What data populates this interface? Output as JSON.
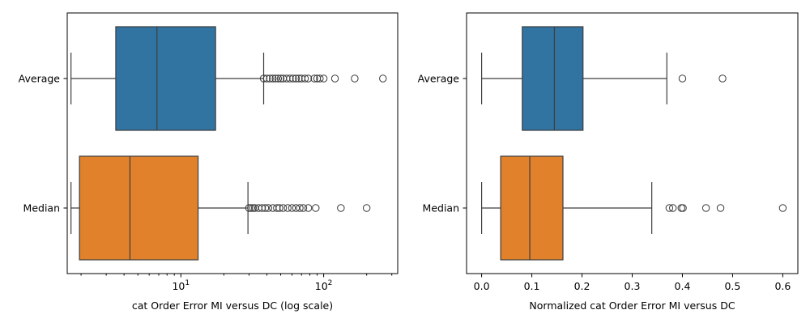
{
  "chart_data": [
    {
      "type": "boxplot",
      "orientation": "horizontal",
      "xscale": "log",
      "xlim": [
        1.6,
        330
      ],
      "xlabel": "cat Order Error MI versus DC (log scale)",
      "xtick_labels": [
        "10^1",
        "10^2"
      ],
      "categories": [
        "Average",
        "Median"
      ],
      "colors": [
        "#3274a1",
        "#e1812c"
      ],
      "series": [
        {
          "name": "Average",
          "whisker_low": 1.7,
          "q1": 3.5,
          "median": 6.8,
          "q3": 17.5,
          "whisker_high": 38,
          "outliers": [
            38,
            40,
            42,
            44,
            46,
            48,
            50,
            52,
            55,
            58,
            61,
            64,
            67,
            70,
            74,
            78,
            86,
            90,
            94,
            100,
            120,
            165,
            260
          ]
        },
        {
          "name": "Median",
          "whisker_low": 1.7,
          "q1": 1.95,
          "median": 4.4,
          "q3": 13.2,
          "whisker_high": 29.5,
          "outliers": [
            30,
            31,
            32,
            33,
            35,
            37,
            39,
            41,
            44,
            47,
            49,
            52,
            56,
            60,
            64,
            68,
            72,
            78,
            88,
            132,
            200
          ]
        }
      ]
    },
    {
      "type": "boxplot",
      "orientation": "horizontal",
      "xscale": "linear",
      "xlim": [
        -0.03,
        0.63
      ],
      "xticks": [
        0.0,
        0.1,
        0.2,
        0.3,
        0.4,
        0.5,
        0.6
      ],
      "xtick_labels": [
        "0.0",
        "0.1",
        "0.2",
        "0.3",
        "0.4",
        "0.5",
        "0.6"
      ],
      "xlabel": "Normalized cat Order Error MI versus DC",
      "categories": [
        "Average",
        "Median"
      ],
      "colors": [
        "#3274a1",
        "#e1812c"
      ],
      "series": [
        {
          "name": "Average",
          "whisker_low": 0.0,
          "q1": 0.081,
          "median": 0.145,
          "q3": 0.202,
          "whisker_high": 0.369,
          "outliers": [
            0.4,
            0.48
          ]
        },
        {
          "name": "Median",
          "whisker_low": 0.0,
          "q1": 0.038,
          "median": 0.096,
          "q3": 0.162,
          "whisker_high": 0.339,
          "outliers": [
            0.374,
            0.381,
            0.398,
            0.401,
            0.447,
            0.476,
            0.6
          ]
        }
      ]
    }
  ]
}
